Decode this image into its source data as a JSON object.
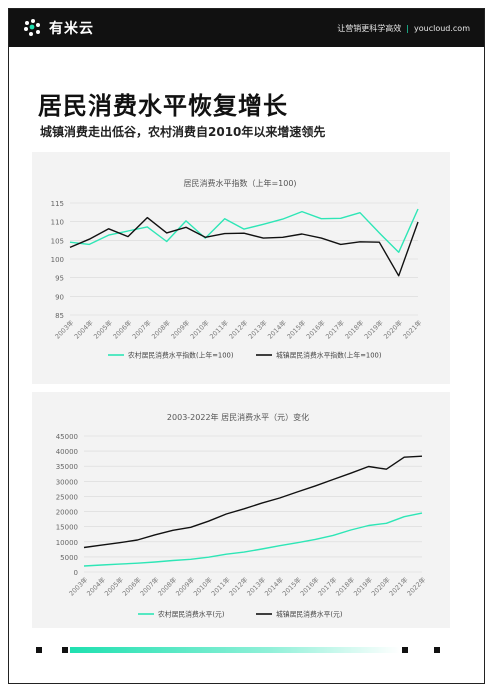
{
  "header": {
    "logo_text": "有米云",
    "slogan_left": "让营销更科学高效",
    "slogan_sep": "|",
    "slogan_right": "youcloud.com"
  },
  "title": "居民消费水平恢复增长",
  "subtitle": "城镇消费走出低谷，农村消费自2010年以来增速领先",
  "colors": {
    "rural": "#2ee6b6",
    "urban": "#111111",
    "accent": "#1fe0b0"
  },
  "chart_data": [
    {
      "type": "line",
      "title": "居民消费水平指数（上年=100)",
      "categories": [
        "2003年",
        "2004年",
        "2005年",
        "2006年",
        "2007年",
        "2008年",
        "2009年",
        "2010年",
        "2011年",
        "2012年",
        "2013年",
        "2014年",
        "2015年",
        "2016年",
        "2017年",
        "2018年",
        "2019年",
        "2020年",
        "2021年"
      ],
      "series": [
        {
          "name": "农村居民消费水平指数(上年=100)",
          "color": "#2ee6b6",
          "values": [
            104.5,
            103.9,
            106.4,
            107.5,
            108.6,
            104.7,
            110.2,
            105.6,
            110.8,
            108.0,
            109.3,
            110.7,
            112.7,
            110.8,
            110.9,
            112.4,
            107.0,
            101.8,
            113.4
          ]
        },
        {
          "name": "城镇居民消费水平指数(上年=100)",
          "color": "#111111",
          "values": [
            103.1,
            105.3,
            108.1,
            106.0,
            111.1,
            107.0,
            108.5,
            105.8,
            106.8,
            106.9,
            105.6,
            105.8,
            106.7,
            105.6,
            103.9,
            104.6,
            104.5,
            95.5,
            109.9
          ]
        }
      ],
      "ylim": [
        85,
        115
      ],
      "yticks": [
        85,
        90,
        95,
        100,
        105,
        110,
        115
      ],
      "grid": true,
      "legend": "bottom"
    },
    {
      "type": "line",
      "title": "2003-2022年 居民消费水平（元）变化",
      "categories": [
        "2003年",
        "2004年",
        "2005年",
        "2006年",
        "2007年",
        "2008年",
        "2009年",
        "2010年",
        "2011年",
        "2012年",
        "2013年",
        "2014年",
        "2015年",
        "2016年",
        "2017年",
        "2018年",
        "2019年",
        "2020年",
        "2021年",
        "2022年"
      ],
      "series": [
        {
          "name": "农村居民消费水平(元)",
          "color": "#2ee6b6",
          "values": [
            2000,
            2300,
            2600,
            2900,
            3300,
            3800,
            4200,
            4900,
            5900,
            6600,
            7600,
            8700,
            9700,
            10800,
            12100,
            13900,
            15400,
            16100,
            18300,
            19500
          ]
        },
        {
          "name": "城镇居民消费水平(元)",
          "color": "#111111",
          "values": [
            8100,
            8900,
            9700,
            10600,
            12300,
            13800,
            14800,
            16800,
            19200,
            20900,
            22800,
            24500,
            26500,
            28500,
            30600,
            32700,
            34900,
            34000,
            38000,
            38300
          ]
        }
      ],
      "ylim": [
        0,
        45000
      ],
      "yticks": [
        0,
        5000,
        10000,
        15000,
        20000,
        25000,
        30000,
        35000,
        40000,
        45000
      ],
      "grid": true,
      "legend": "bottom"
    }
  ]
}
